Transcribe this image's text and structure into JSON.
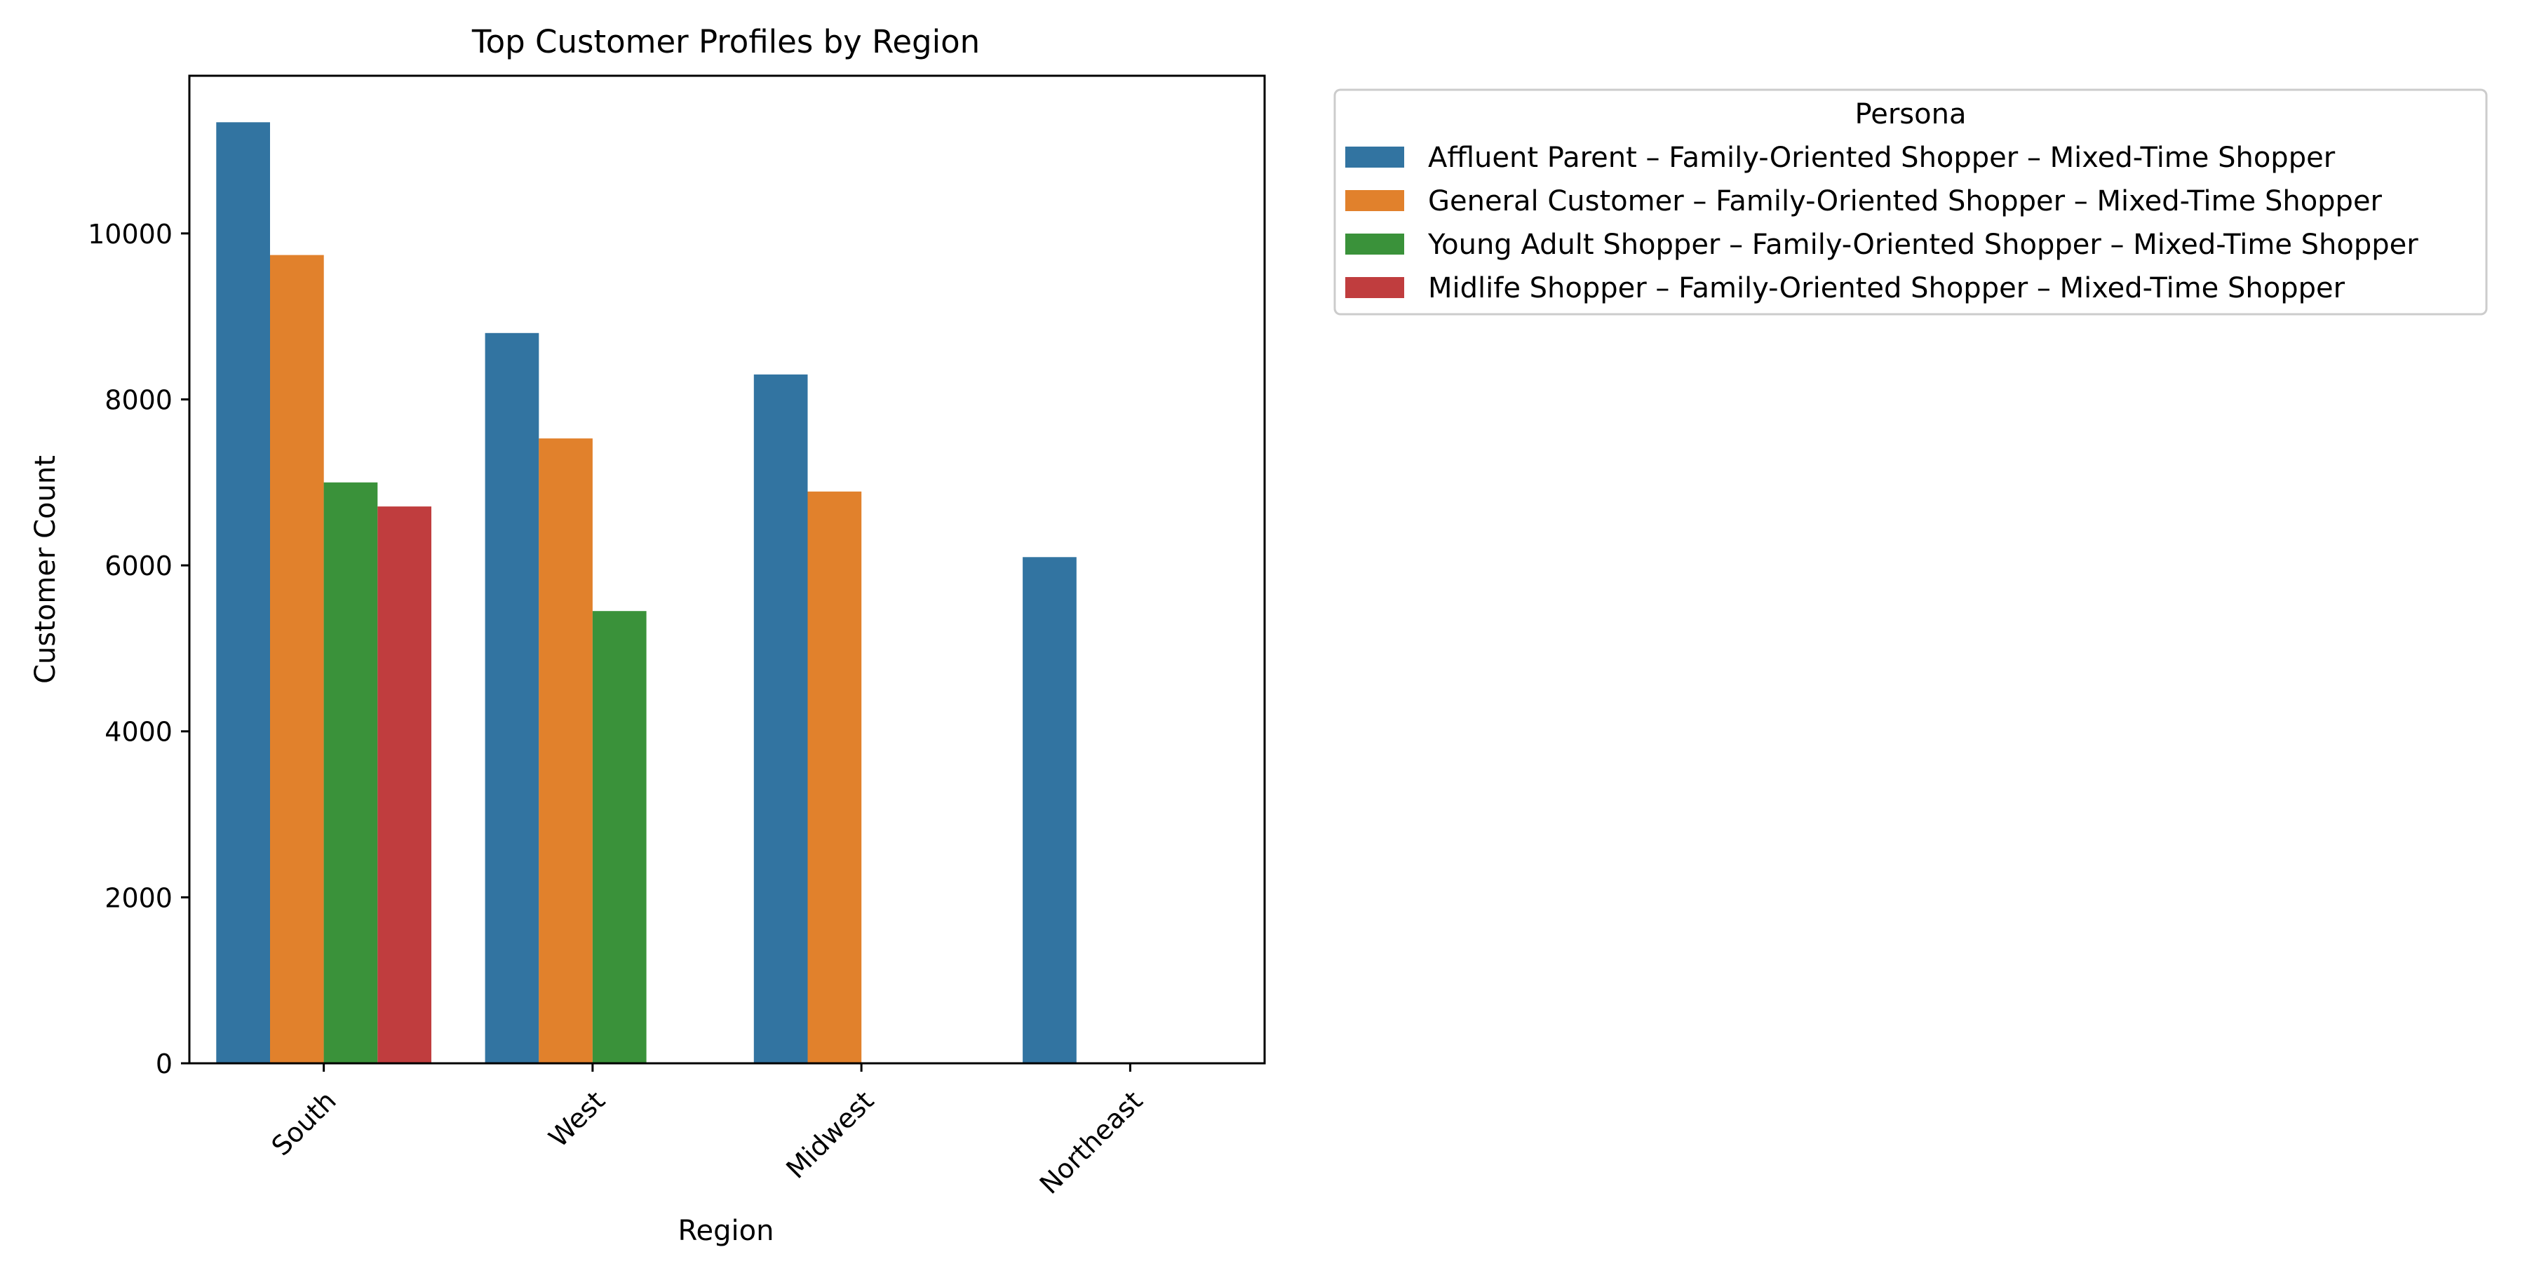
{
  "chart_data": {
    "type": "bar",
    "title": "Top Customer Profiles by Region",
    "xlabel": "Region",
    "ylabel": "Customer Count",
    "categories": [
      "South",
      "West",
      "Midwest",
      "Northeast"
    ],
    "ylim": [
      0,
      11900
    ],
    "yticks": [
      0,
      2000,
      4000,
      6000,
      8000,
      10000
    ],
    "ytick_labels": [
      "0",
      "2000",
      "4000",
      "6000",
      "8000",
      "10000"
    ],
    "grid": false,
    "legend": {
      "title": "Persona",
      "placement": "outside-top-right"
    },
    "series": [
      {
        "name": "Affluent Parent – Family-Oriented Shopper – Mixed-Time Shopper",
        "color": "#3274a1",
        "values": [
          11340,
          8800,
          8300,
          6100
        ]
      },
      {
        "name": "General Customer – Family-Oriented Shopper – Mixed-Time Shopper",
        "color": "#e1812c",
        "values": [
          9740,
          7530,
          6890,
          null
        ]
      },
      {
        "name": "Young Adult Shopper – Family-Oriented Shopper – Mixed-Time Shopper",
        "color": "#3a923a",
        "values": [
          7000,
          5450,
          null,
          null
        ]
      },
      {
        "name": "Midlife Shopper – Family-Oriented Shopper – Mixed-Time Shopper",
        "color": "#c03d3e",
        "values": [
          6710,
          null,
          null,
          null
        ]
      }
    ]
  }
}
